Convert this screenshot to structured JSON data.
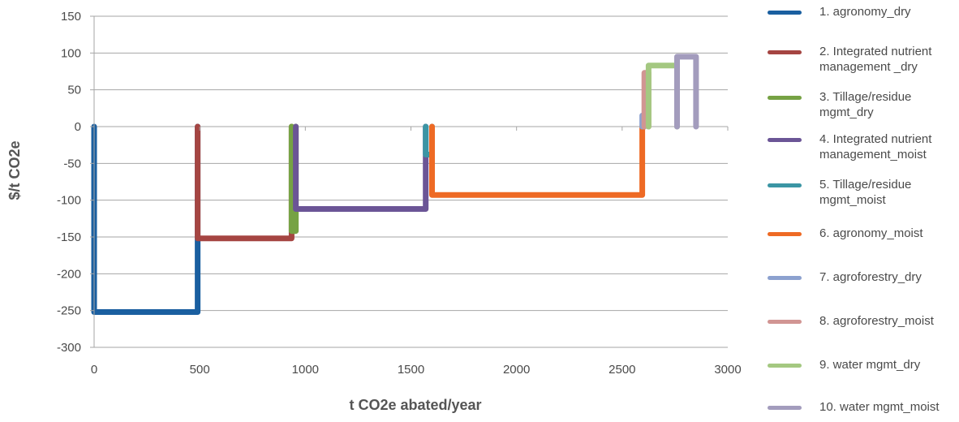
{
  "chart_data": {
    "type": "line",
    "xlabel": "t CO2e abated/year",
    "ylabel": "$/t CO2e",
    "xlim": [
      0,
      3000
    ],
    "ylim": [
      -300,
      150
    ],
    "x_ticks": [
      "0",
      "500",
      "1000",
      "1500",
      "2000",
      "2500",
      "3000"
    ],
    "y_ticks": [
      "150",
      "100",
      "50",
      "0",
      "-50",
      "-100",
      "-150",
      "-200",
      "-250",
      "-300"
    ],
    "grid": "horizontal",
    "legend_position": "right",
    "series": [
      {
        "name": "1. agronomy_dry",
        "color": "#1a5fa0",
        "x": [
          0,
          0,
          490,
          490
        ],
        "y": [
          0,
          -252,
          -252,
          0
        ]
      },
      {
        "name": "2. Integrated nutrient management _dry",
        "color": "#a54542",
        "x": [
          490,
          490,
          935,
          935
        ],
        "y": [
          0,
          -152,
          -152,
          0
        ]
      },
      {
        "name": "3. Tillage/residue mgmt_dry",
        "color": "#76a244",
        "x": [
          935,
          935,
          955,
          955
        ],
        "y": [
          0,
          -142,
          -142,
          0
        ]
      },
      {
        "name": "4. Integrated nutrient management_moist",
        "color": "#6b5596",
        "x": [
          955,
          955,
          1570,
          1570
        ],
        "y": [
          0,
          -112,
          -112,
          0
        ]
      },
      {
        "name": "5. Tillage/residue mgmt_moist",
        "color": "#3b95a4",
        "x": [
          1570,
          1570,
          1600,
          1600
        ],
        "y": [
          0,
          -38,
          -38,
          0
        ]
      },
      {
        "name": "6. agronomy_moist",
        "color": "#ee6a24",
        "x": [
          1600,
          1600,
          2595,
          2595
        ],
        "y": [
          0,
          -93,
          -93,
          0
        ]
      },
      {
        "name": "7. agroforestry_dry",
        "color": "#8ca1cf",
        "x": [
          2595,
          2595,
          2605,
          2605
        ],
        "y": [
          0,
          15,
          15,
          0
        ]
      },
      {
        "name": "8. agroforestry_moist",
        "color": "#d19593",
        "x": [
          2605,
          2605,
          2625,
          2625
        ],
        "y": [
          0,
          73,
          73,
          0
        ]
      },
      {
        "name": "9. water mgmt_dry",
        "color": "#a4c881",
        "x": [
          2625,
          2625,
          2760,
          2760
        ],
        "y": [
          0,
          83,
          83,
          0
        ]
      },
      {
        "name": "10. water mgmt_moist",
        "color": "#a39cbd",
        "x": [
          2760,
          2760,
          2850,
          2850
        ],
        "y": [
          0,
          95,
          95,
          0
        ]
      }
    ]
  }
}
